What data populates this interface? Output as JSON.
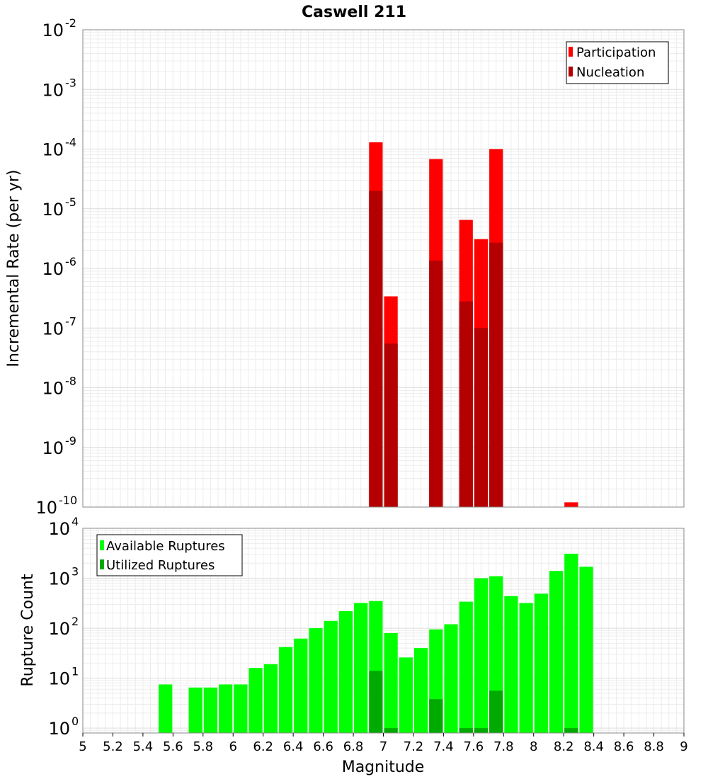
{
  "chart_data": [
    {
      "type": "bar",
      "title": "Caswell 211",
      "xlabel": "",
      "ylabel": "Incremental Rate (per yr)",
      "y_scale": "log",
      "ylim": [
        1e-10,
        0.01
      ],
      "xlim": [
        5,
        9
      ],
      "grid": true,
      "legend_position": "top-right",
      "yticks": [
        {
          "base": "10",
          "exp": "-2"
        },
        {
          "base": "10",
          "exp": "-3"
        },
        {
          "base": "10",
          "exp": "-4"
        },
        {
          "base": "10",
          "exp": "-5"
        },
        {
          "base": "10",
          "exp": "-6"
        },
        {
          "base": "10",
          "exp": "-7"
        },
        {
          "base": "10",
          "exp": "-8"
        },
        {
          "base": "10",
          "exp": "-9"
        },
        {
          "base": "10",
          "exp": "-10"
        }
      ],
      "legend": [
        {
          "label": "Participation",
          "color": "#ff0000"
        },
        {
          "label": "Nucleation",
          "color": "#b40000"
        }
      ],
      "series": [
        {
          "name": "Participation",
          "color": "#ff0000",
          "x": [
            6.95,
            7.05,
            7.35,
            7.55,
            7.65,
            7.75,
            8.25
          ],
          "values": [
            0.00013,
            3.4e-07,
            6.8e-05,
            6.5e-06,
            3.1e-06,
            0.0001,
            1.2e-10
          ]
        },
        {
          "name": "Nucleation",
          "color": "#b40000",
          "x": [
            6.95,
            7.05,
            7.35,
            7.55,
            7.65,
            7.75
          ],
          "values": [
            2e-05,
            5.5e-08,
            1.35e-06,
            2.8e-07,
            1e-07,
            2.7e-06
          ]
        }
      ]
    },
    {
      "type": "bar",
      "title": "",
      "xlabel": "Magnitude",
      "ylabel": "Rupture Count",
      "y_scale": "log",
      "ylim": [
        0.8,
        10000
      ],
      "xlim": [
        5,
        9
      ],
      "grid": true,
      "legend_position": "top-left",
      "yticks": [
        {
          "base": "10",
          "exp": "4"
        },
        {
          "base": "10",
          "exp": "3"
        },
        {
          "base": "10",
          "exp": "2"
        },
        {
          "base": "10",
          "exp": "1"
        },
        {
          "base": "10",
          "exp": "0"
        }
      ],
      "xticks": [
        "5",
        "5.2",
        "5.4",
        "5.6",
        "5.8",
        "6",
        "6.2",
        "6.4",
        "6.6",
        "6.8",
        "7",
        "7.2",
        "7.4",
        "7.6",
        "7.8",
        "8",
        "8.2",
        "8.4",
        "8.6",
        "8.8",
        "9"
      ],
      "legend": [
        {
          "label": "Available Ruptures",
          "color": "#00ff00"
        },
        {
          "label": "Utilized Ruptures",
          "color": "#00aa00"
        }
      ],
      "series": [
        {
          "name": "Available Ruptures",
          "color": "#00ff00",
          "x": [
            5.55,
            5.75,
            5.85,
            5.95,
            6.05,
            6.15,
            6.25,
            6.35,
            6.45,
            6.55,
            6.65,
            6.75,
            6.85,
            6.95,
            7.05,
            7.15,
            7.25,
            7.35,
            7.45,
            7.55,
            7.65,
            7.75,
            7.85,
            7.95,
            8.05,
            8.15,
            8.25,
            8.35
          ],
          "values": [
            7.5,
            6.5,
            6.5,
            7.5,
            7.5,
            16,
            19,
            42,
            62,
            100,
            140,
            220,
            320,
            350,
            80,
            26,
            40,
            95,
            120,
            340,
            1000,
            1100,
            440,
            320,
            490,
            1400,
            3100,
            1700
          ]
        },
        {
          "name": "Utilized Ruptures",
          "color": "#00aa00",
          "x": [
            6.95,
            7.05,
            7.35,
            7.55,
            7.65,
            7.75,
            8.25
          ],
          "values": [
            14,
            1,
            3.8,
            1,
            1,
            5.6,
            1
          ]
        }
      ]
    }
  ]
}
